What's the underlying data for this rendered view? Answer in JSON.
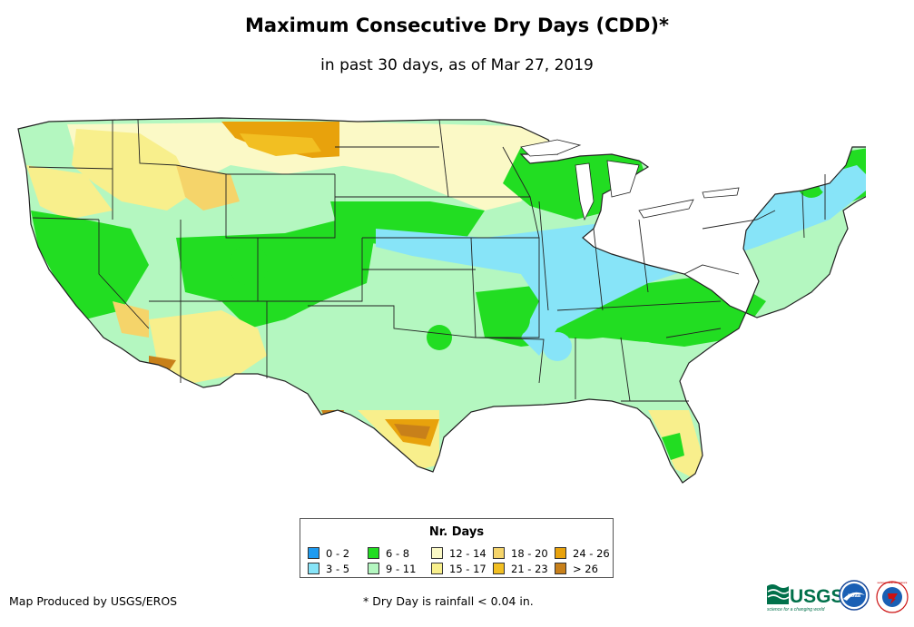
{
  "header": {
    "title": "Maximum Consecutive Dry Days (CDD)*",
    "subtitle": "in past 30 days, as of Mar 27, 2019"
  },
  "legend": {
    "title": "Nr. Days",
    "items": [
      {
        "label": "0 - 2",
        "color": "#1e9bf0"
      },
      {
        "label": "3 - 5",
        "color": "#87e4f8"
      },
      {
        "label": "6 - 8",
        "color": "#22dd22"
      },
      {
        "label": "9 - 11",
        "color": "#b4f7c0"
      },
      {
        "label": "12 - 14",
        "color": "#fbf9c6"
      },
      {
        "label": "15 - 17",
        "color": "#f8ef8c"
      },
      {
        "label": "18 - 20",
        "color": "#f5d46a"
      },
      {
        "label": "21 - 23",
        "color": "#f2bf22"
      },
      {
        "label": "24 - 26",
        "color": "#e8a20c"
      },
      {
        "label": "> 26",
        "color": "#c8801a"
      }
    ]
  },
  "footer": {
    "credit": "Map Produced by USGS/EROS",
    "footnote": "* Dry Day is rainfall < 0.04 in.",
    "usgs_logo_text": "USGS",
    "usgs_tagline": "science for a changing world",
    "noaa_logo_text": "noaa",
    "nws_logo_text": "NATIONAL WEATHER SERVICE"
  }
}
